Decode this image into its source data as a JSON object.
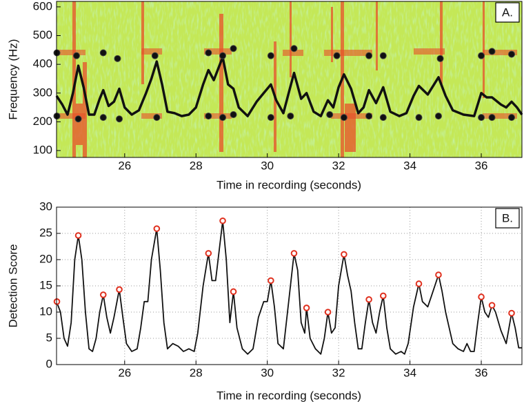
{
  "chart_data": [
    {
      "type": "line",
      "panel_label": "A.",
      "xlabel": "Time in recording (seconds)",
      "ylabel": "Frequency (Hz)",
      "xlim": [
        24.09,
        37.14
      ],
      "ylim": [
        76,
        619
      ],
      "xticks": [
        26,
        28,
        30,
        32,
        34,
        36
      ],
      "yticks": [
        100,
        200,
        300,
        400,
        500,
        600
      ],
      "grid": false,
      "x": [
        24.09,
        24.25,
        24.4,
        24.55,
        24.7,
        24.85,
        25.0,
        25.15,
        25.3,
        25.4,
        25.55,
        25.7,
        25.85,
        26.0,
        26.2,
        26.4,
        26.6,
        26.75,
        26.9,
        27.05,
        27.2,
        27.4,
        27.6,
        27.8,
        28.0,
        28.2,
        28.35,
        28.5,
        28.75,
        28.9,
        29.05,
        29.2,
        29.45,
        29.7,
        29.9,
        30.1,
        30.25,
        30.45,
        30.6,
        30.75,
        30.95,
        31.1,
        31.3,
        31.5,
        31.7,
        31.85,
        32.0,
        32.15,
        32.35,
        32.55,
        32.7,
        32.85,
        33.05,
        33.25,
        33.45,
        33.7,
        33.9,
        34.1,
        34.25,
        34.5,
        34.8,
        35.0,
        35.2,
        35.5,
        35.8,
        36.0,
        36.15,
        36.3,
        36.55,
        36.7,
        36.85,
        37.0,
        37.14
      ],
      "series": [
        {
          "color": "#111111",
          "values": [
            290,
            260,
            225,
            300,
            395,
            320,
            225,
            225,
            280,
            310,
            255,
            270,
            315,
            250,
            225,
            240,
            300,
            350,
            410,
            330,
            235,
            230,
            220,
            225,
            250,
            330,
            380,
            345,
            425,
            330,
            315,
            250,
            220,
            270,
            300,
            330,
            275,
            230,
            300,
            370,
            280,
            300,
            235,
            220,
            275,
            250,
            320,
            365,
            315,
            230,
            250,
            310,
            265,
            320,
            235,
            220,
            230,
            290,
            325,
            295,
            355,
            290,
            240,
            225,
            220,
            300,
            285,
            285,
            260,
            250,
            270,
            250,
            225
          ]
        }
      ],
      "markers": {
        "color": "#111111",
        "x": [
          24.1,
          24.65,
          25.4,
          25.8,
          26.85,
          28.35,
          28.75,
          29.05,
          30.1,
          30.75,
          31.95,
          32.85,
          33.25,
          34.85,
          36.0,
          36.3,
          36.85,
          24.1,
          24.7,
          25.4,
          25.85,
          26.9,
          28.35,
          28.75,
          29.05,
          30.1,
          30.65,
          31.75,
          32.15,
          32.85,
          33.25,
          34.25,
          34.8,
          36.0,
          36.3,
          36.85
        ],
        "y": [
          440,
          430,
          440,
          420,
          430,
          440,
          430,
          455,
          430,
          455,
          430,
          430,
          430,
          420,
          430,
          445,
          435,
          220,
          210,
          215,
          210,
          215,
          220,
          215,
          225,
          215,
          220,
          225,
          215,
          220,
          215,
          215,
          220,
          215,
          215,
          215
        ]
      }
    },
    {
      "type": "line",
      "panel_label": "B.",
      "xlabel": "Time in recording (seconds)",
      "ylabel": "Detection Score",
      "xlim": [
        24.09,
        37.14
      ],
      "ylim": [
        0,
        30
      ],
      "xticks": [
        26,
        28,
        30,
        32,
        34,
        36
      ],
      "yticks": [
        0,
        5,
        10,
        15,
        20,
        25,
        30
      ],
      "grid": true,
      "x": [
        24.09,
        24.2,
        24.3,
        24.4,
        24.5,
        24.6,
        24.7,
        24.8,
        24.9,
        25.0,
        25.1,
        25.2,
        25.3,
        25.4,
        25.5,
        25.6,
        25.7,
        25.85,
        25.95,
        26.05,
        26.2,
        26.35,
        26.45,
        26.55,
        26.65,
        26.75,
        26.9,
        27.0,
        27.1,
        27.2,
        27.35,
        27.5,
        27.65,
        27.8,
        27.95,
        28.05,
        28.2,
        28.35,
        28.45,
        28.55,
        28.75,
        28.85,
        28.95,
        29.05,
        29.15,
        29.3,
        29.45,
        29.6,
        29.75,
        29.9,
        30.0,
        30.1,
        30.2,
        30.3,
        30.45,
        30.6,
        30.75,
        30.85,
        30.95,
        31.05,
        31.1,
        31.2,
        31.35,
        31.5,
        31.6,
        31.7,
        31.8,
        31.9,
        32.0,
        32.15,
        32.25,
        32.35,
        32.45,
        32.55,
        32.65,
        32.75,
        32.85,
        32.95,
        33.05,
        33.15,
        33.25,
        33.35,
        33.45,
        33.6,
        33.75,
        33.85,
        33.95,
        34.1,
        34.25,
        34.35,
        34.5,
        34.6,
        34.8,
        34.9,
        35.0,
        35.1,
        35.2,
        35.35,
        35.5,
        35.6,
        35.7,
        35.8,
        35.9,
        36.0,
        36.1,
        36.2,
        36.3,
        36.4,
        36.55,
        36.7,
        36.85,
        36.95,
        37.05,
        37.14
      ],
      "series": [
        {
          "color": "#111111",
          "values": [
            12,
            10,
            5,
            3.5,
            8,
            20,
            24.6,
            20,
            10,
            3,
            2.5,
            5,
            10,
            13.3,
            9,
            6,
            9,
            14.3,
            9,
            4,
            2.5,
            3,
            7,
            12,
            12,
            20,
            25.9,
            18,
            8,
            3,
            4,
            3.5,
            2.5,
            3,
            2.5,
            6,
            15,
            21.2,
            16,
            16,
            27.4,
            20,
            8,
            13.9,
            7,
            3,
            2,
            3,
            9,
            12,
            12,
            16,
            11,
            4,
            3,
            12,
            21.2,
            18,
            8,
            6,
            10.8,
            5,
            3,
            2,
            5,
            10,
            6,
            7,
            15,
            21,
            17,
            14,
            8,
            3,
            3,
            8,
            12.4,
            8,
            6,
            10,
            13.1,
            7,
            3,
            2,
            2.5,
            2,
            4,
            11,
            15.4,
            12,
            11,
            13,
            17.1,
            14,
            10,
            7,
            4,
            3,
            2.5,
            4,
            2.5,
            2.5,
            8,
            12.9,
            10,
            9,
            11.3,
            10,
            6.5,
            4,
            9.8,
            7,
            3.2,
            3.2
          ]
        }
      ],
      "markers": {
        "color": "#e0301e",
        "x": [
          24.1,
          24.7,
          25.4,
          25.85,
          26.9,
          28.35,
          28.75,
          29.05,
          30.1,
          30.75,
          31.1,
          31.7,
          32.15,
          32.85,
          33.25,
          34.25,
          34.8,
          36.0,
          36.3,
          36.85
        ],
        "y": [
          12,
          24.6,
          13.3,
          14.3,
          25.9,
          21.2,
          27.4,
          13.9,
          16,
          21.2,
          10.8,
          10,
          21,
          12.4,
          13.1,
          15.4,
          17.1,
          12.9,
          11.3,
          9.8
        ]
      }
    }
  ]
}
